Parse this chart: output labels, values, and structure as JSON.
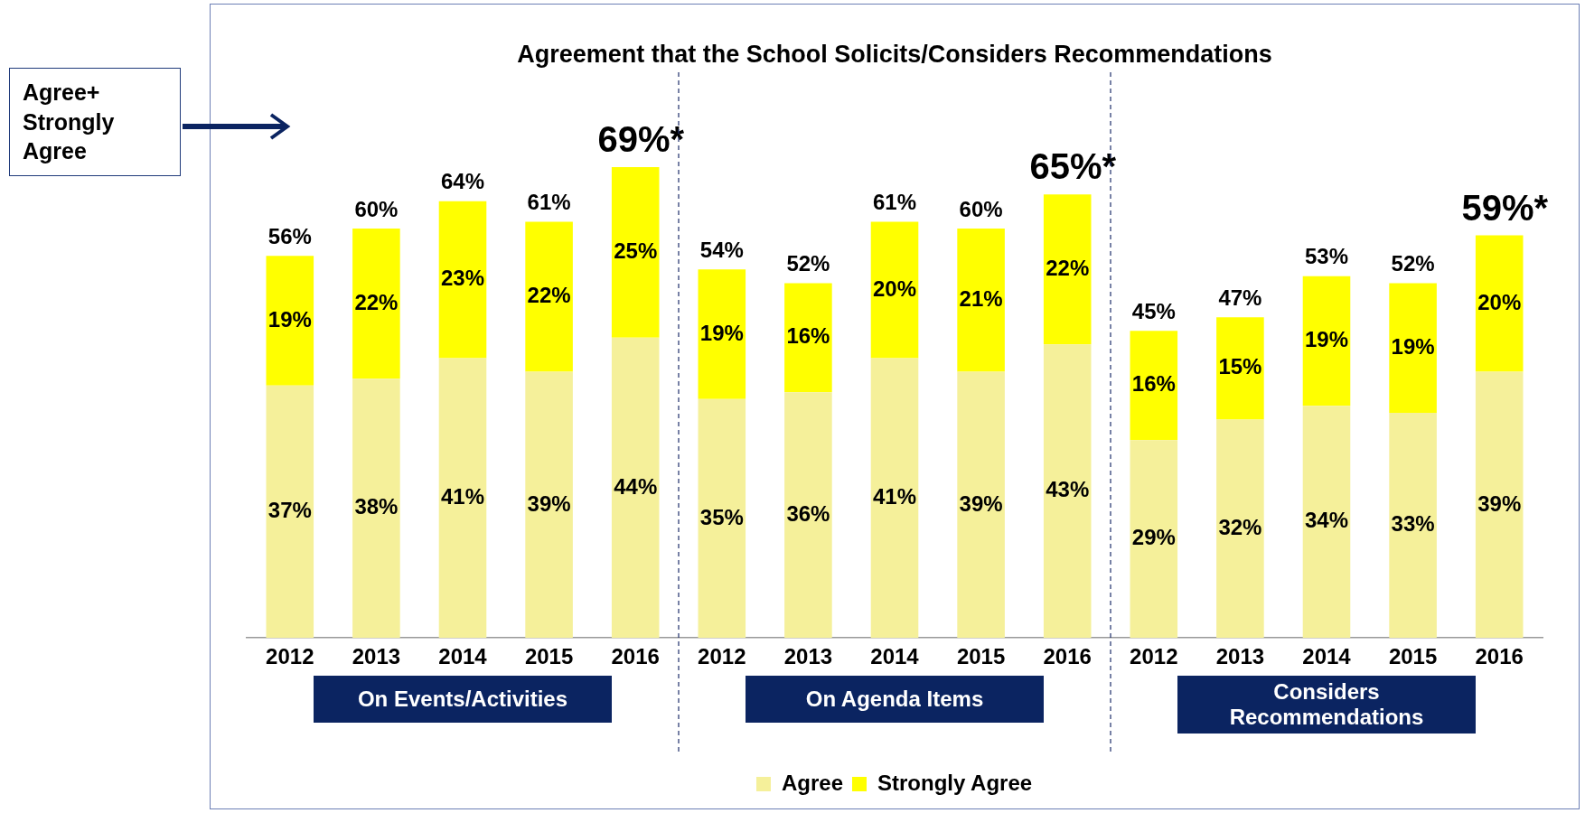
{
  "chart_data": {
    "type": "bar",
    "title": "Agreement that the School Solicits/Considers Recommendations",
    "categories": [
      "2012",
      "2013",
      "2014",
      "2015",
      "2016",
      "2012",
      "2013",
      "2014",
      "2015",
      "2016",
      "2012",
      "2013",
      "2014",
      "2015",
      "2016"
    ],
    "stacked": true,
    "legend": "bottom",
    "grid": false,
    "tick_labels": "x",
    "series": [
      {
        "name": "Agree",
        "color": "#f5f09a",
        "values": [
          37,
          38,
          41,
          39,
          44,
          35,
          36,
          41,
          39,
          43,
          29,
          32,
          34,
          33,
          39
        ],
        "value_labels": [
          "37%",
          "38%",
          "41%",
          "39%",
          "44%",
          "35%",
          "36%",
          "41%",
          "39%",
          "43%",
          "29%",
          "32%",
          "34%",
          "33%",
          "39%"
        ]
      },
      {
        "name": "Strongly Agree",
        "color": "#ffff00",
        "values": [
          19,
          22,
          23,
          22,
          25,
          19,
          16,
          20,
          21,
          22,
          16,
          15,
          19,
          19,
          20
        ],
        "value_labels": [
          "19%",
          "22%",
          "23%",
          "22%",
          "25%",
          "19%",
          "16%",
          "20%",
          "21%",
          "22%",
          "16%",
          "15%",
          "19%",
          "19%",
          "20%"
        ]
      }
    ],
    "totals": [
      "56%",
      "60%",
      "64%",
      "61%",
      "69%*",
      "54%",
      "52%",
      "61%",
      "60%",
      "65%*",
      "45%",
      "47%",
      "53%",
      "52%",
      "59%*"
    ],
    "annotations": [
      "Agree+ Strongly Agree",
      "On Events/Activities",
      "On Agenda Items",
      "Considers Recommendations"
    ]
  }
}
